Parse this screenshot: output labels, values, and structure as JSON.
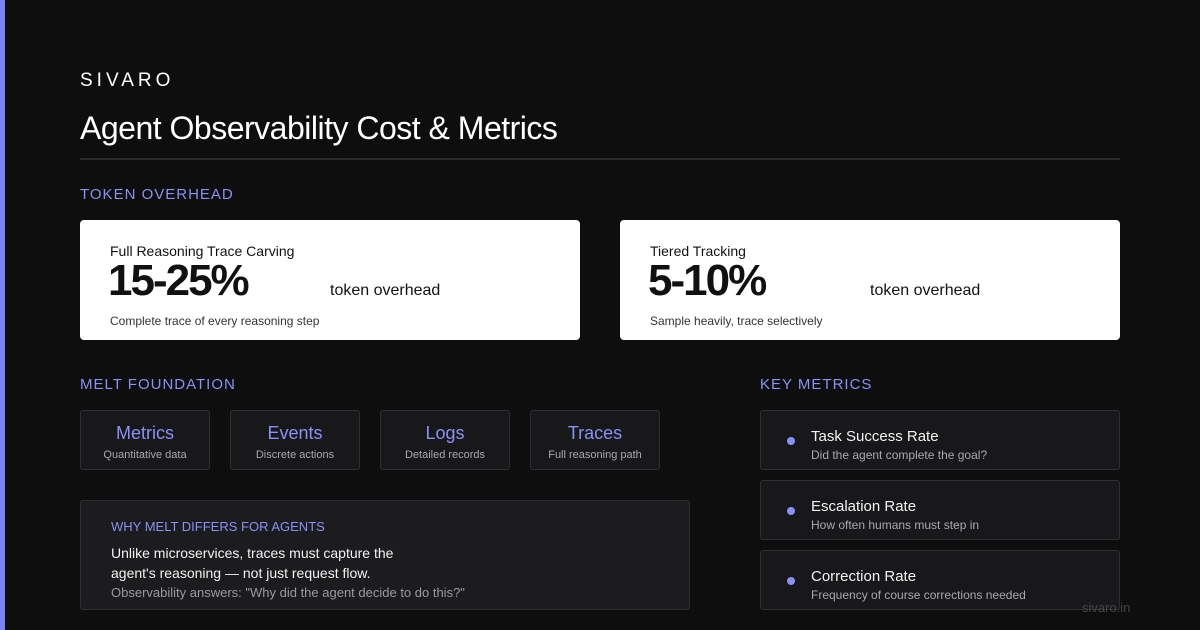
{
  "colors": {
    "accent": "#8b90f5",
    "background": "#0f0e0e",
    "card": "#ffffff",
    "panel": "#18181b"
  },
  "brand": "SIVARO",
  "title": "Agent Observability Cost & Metrics",
  "token_overhead": {
    "section_label": "TOKEN OVERHEAD",
    "cards": [
      {
        "title": "Full Reasoning Trace Carving",
        "value": "15-25%",
        "unit": "token overhead",
        "desc": "Complete trace of every reasoning step"
      },
      {
        "title": "Tiered Tracking",
        "value": "5-10%",
        "unit": "token overhead",
        "desc": "Sample heavily, trace selectively"
      }
    ]
  },
  "melt": {
    "section_label": "MELT FOUNDATION",
    "items": [
      {
        "name": "Metrics",
        "desc": "Quantitative data"
      },
      {
        "name": "Events",
        "desc": "Discrete actions"
      },
      {
        "name": "Logs",
        "desc": "Detailed records"
      },
      {
        "name": "Traces",
        "desc": "Full reasoning path"
      }
    ],
    "why": {
      "heading": "WHY MELT DIFFERS FOR AGENTS",
      "line1": "Unlike microservices, traces must capture the",
      "line2": "agent's reasoning — not just request flow.",
      "note": "Observability answers: \"Why did the agent decide to do this?\""
    }
  },
  "key_metrics": {
    "section_label": "KEY METRICS",
    "items": [
      {
        "name": "Task Success Rate",
        "desc": "Did the agent complete the goal?",
        "icon": "bullet-dot-icon"
      },
      {
        "name": "Escalation Rate",
        "desc": "How often humans must step in",
        "icon": "bullet-dot-icon"
      },
      {
        "name": "Correction Rate",
        "desc": "Frequency of course corrections needed",
        "icon": "bullet-dot-icon"
      }
    ]
  },
  "footer": "sivaro.in"
}
